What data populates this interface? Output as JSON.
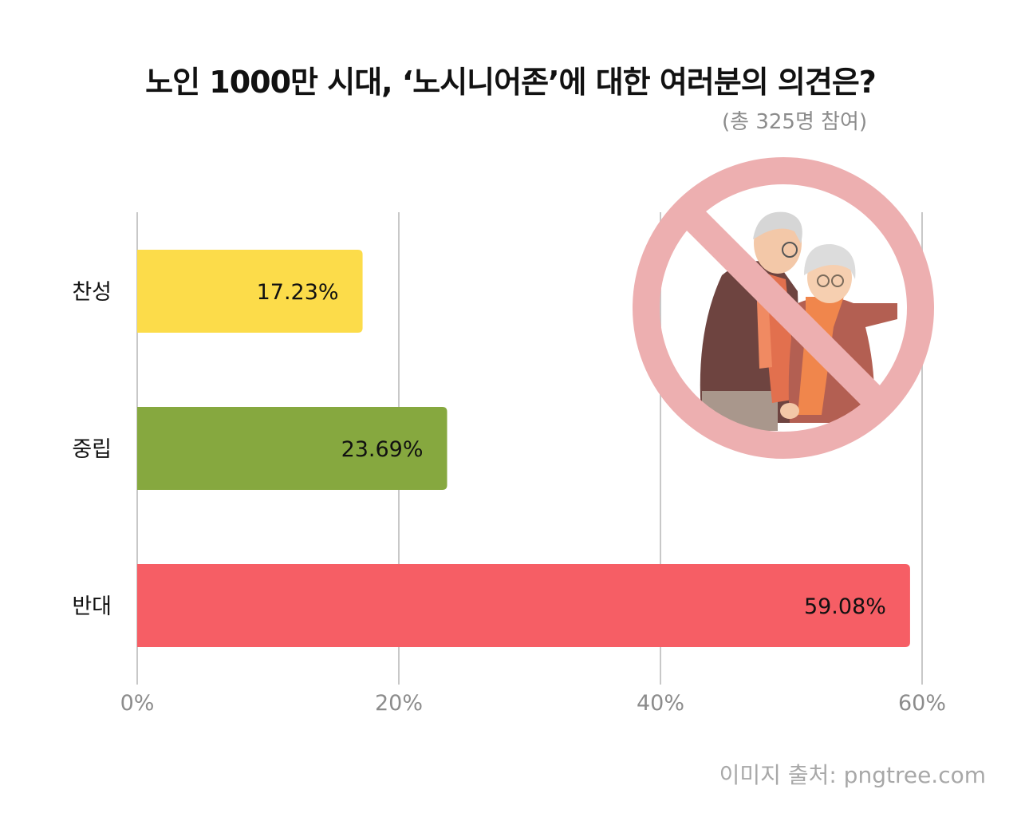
{
  "chart_data": {
    "type": "bar",
    "orientation": "horizontal",
    "title": "노인 1000만 시대, ‘노시니어존’에 대한 여러분의 의견은?",
    "subtitle": "(총 325명 참여)",
    "categories": [
      "찬성",
      "중립",
      "반대"
    ],
    "values": [
      17.23,
      23.69,
      59.08
    ],
    "value_labels": [
      "17.23%",
      "23.69%",
      "59.08%"
    ],
    "colors": [
      "#fcdc4a",
      "#86a83f",
      "#f65e65"
    ],
    "xlim": [
      0,
      60
    ],
    "xticks": [
      0,
      20,
      40,
      60
    ],
    "xtick_labels": [
      "0%",
      "20%",
      "40%",
      "60%"
    ],
    "grid": true,
    "source": "이미지 출처: pngtree.com"
  },
  "illustration": {
    "icon": "no-elderly-sign-icon"
  }
}
